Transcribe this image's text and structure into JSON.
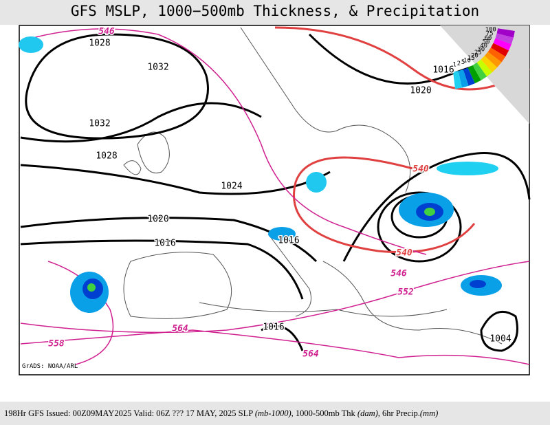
{
  "title": "GFS MSLP, 1000−500mb Thickness, & Precipitation",
  "contour_labels": [
    "546",
    "1028",
    "1032",
    "1032",
    "1028",
    "1024",
    "1020",
    "1016",
    "1016",
    "1016",
    "1020",
    "540",
    "540",
    "546",
    "552",
    "564",
    "564",
    "558",
    "1016",
    "1004"
  ],
  "legend": [
    100,
    75,
    60,
    50,
    40,
    30,
    25,
    20,
    15,
    10,
    5,
    2,
    1
  ],
  "credit": "GrADS: NOAA/ARL",
  "footer": [
    "198Hr GFS Issued: 00Z09MAY2025 Valid: 06Z ??? 17 MAY, 2025  SLP ",
    "(mb-1000)",
    ", 1000-500mb Thk ",
    "(dam)",
    ", 6hr Precip.",
    "(mm)"
  ]
}
